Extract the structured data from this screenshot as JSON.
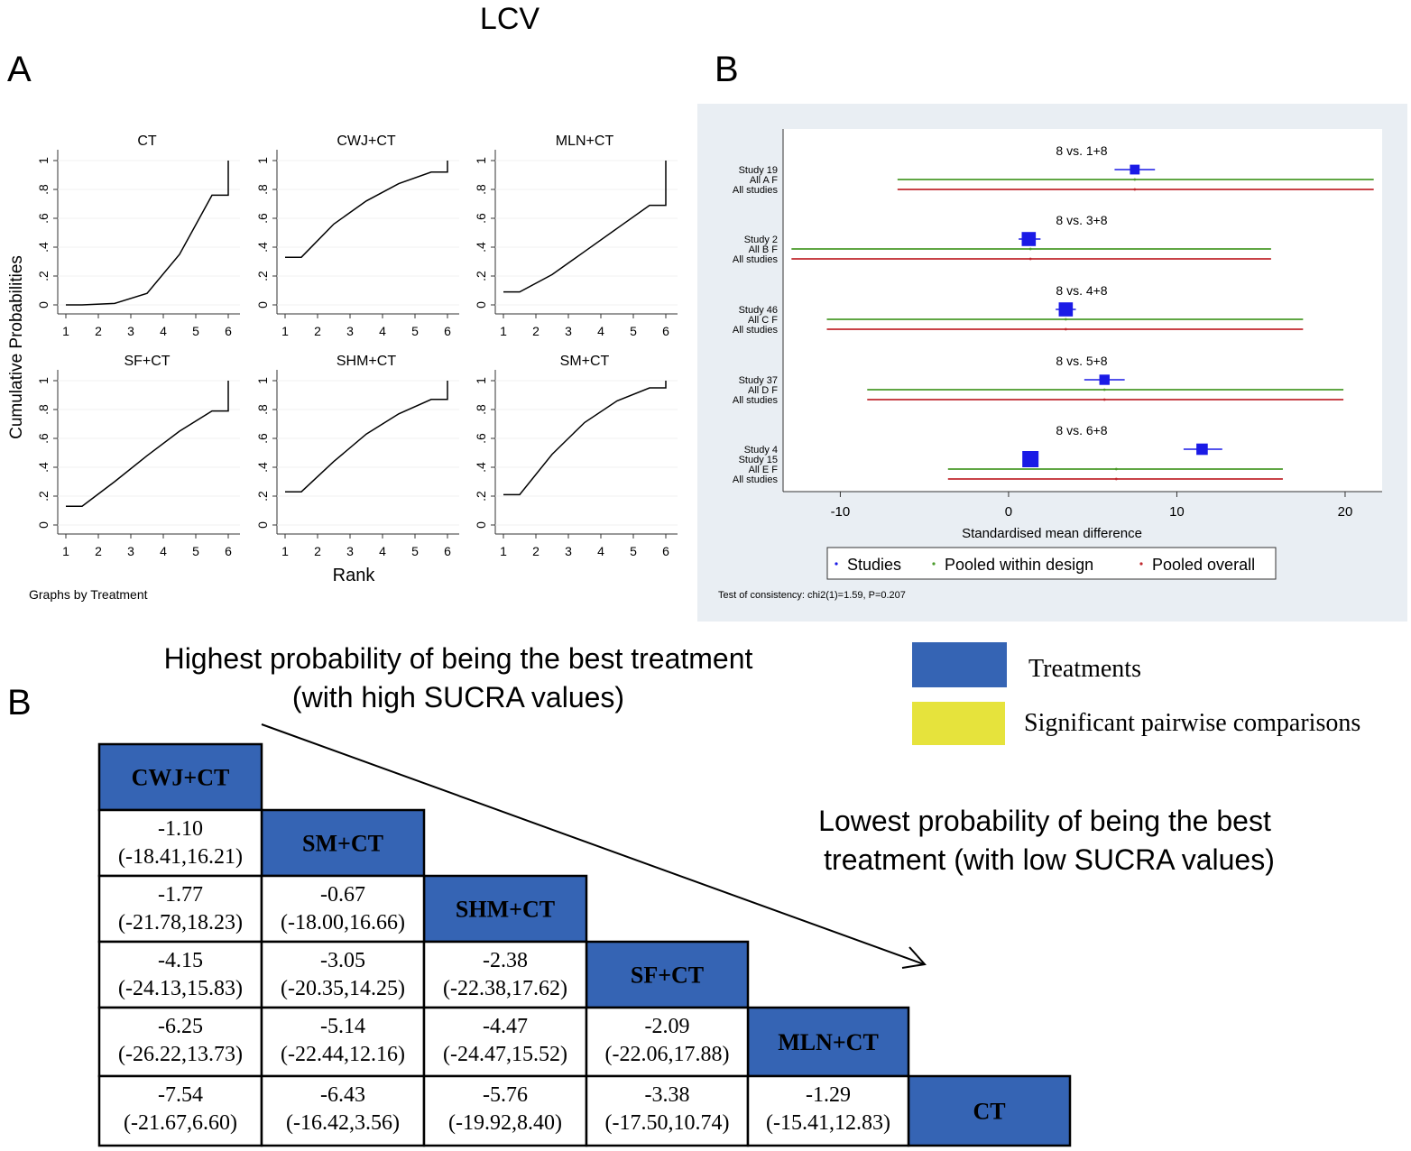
{
  "title": "LCV",
  "panel_labels": {
    "a": "A",
    "b_top": "B",
    "b_bottom": "B"
  },
  "chart_data": [
    {
      "type": "line",
      "ylabel": "Cumulative Probabilities",
      "xlabel": "Rank",
      "note": "Graphs by Treatment",
      "xlim": [
        1,
        6
      ],
      "ylim": [
        0,
        1
      ],
      "xticks": [
        "1",
        "2",
        "3",
        "4",
        "5",
        "6"
      ],
      "yticks": [
        "0",
        ".2",
        ".4",
        ".6",
        ".8",
        "1"
      ],
      "line_color": "#000000",
      "panels": [
        {
          "name": "CT",
          "x": [
            1,
            1.5,
            2.5,
            3.5,
            4.5,
            5.5,
            6,
            6
          ],
          "y": [
            0,
            0,
            0.01,
            0.08,
            0.35,
            0.76,
            0.76,
            1
          ]
        },
        {
          "name": "CWJ+CT",
          "x": [
            1,
            1.5,
            2.5,
            3.5,
            4.5,
            5.5,
            6,
            6
          ],
          "y": [
            0.33,
            0.33,
            0.56,
            0.72,
            0.84,
            0.92,
            0.92,
            1
          ]
        },
        {
          "name": "MLN+CT",
          "x": [
            1,
            1.5,
            2.5,
            3.5,
            4.5,
            5.5,
            6,
            6
          ],
          "y": [
            0.09,
            0.09,
            0.21,
            0.37,
            0.53,
            0.69,
            0.69,
            1
          ]
        },
        {
          "name": "SF+CT",
          "x": [
            1,
            1.5,
            2.5,
            3.5,
            4.5,
            5.5,
            6,
            6
          ],
          "y": [
            0.13,
            0.13,
            0.3,
            0.48,
            0.65,
            0.79,
            0.79,
            1
          ]
        },
        {
          "name": "SHM+CT",
          "x": [
            1,
            1.5,
            2.5,
            3.5,
            4.5,
            5.5,
            6,
            6
          ],
          "y": [
            0.23,
            0.23,
            0.44,
            0.63,
            0.77,
            0.87,
            0.87,
            1
          ]
        },
        {
          "name": "SM+CT",
          "x": [
            1,
            1.5,
            2.5,
            3.5,
            4.5,
            5.5,
            6,
            6
          ],
          "y": [
            0.21,
            0.21,
            0.49,
            0.71,
            0.86,
            0.95,
            0.95,
            1
          ]
        }
      ]
    },
    {
      "type": "forest",
      "xlabel": "Standardised mean difference",
      "xlim": [
        -13.4,
        22.2
      ],
      "xticks": [
        -10,
        0,
        10,
        20
      ],
      "footnote": "Test of consistency: chi2(1)=1.59, P=0.207",
      "legend": [
        {
          "label": "Studies",
          "color": "#1a1ae6"
        },
        {
          "label": "Pooled within design",
          "color": "#4a9a2a"
        },
        {
          "label": "Pooled overall",
          "color": "#c0282e"
        }
      ],
      "legend_placement": "bottom",
      "groups": [
        {
          "title": "8 vs. 1+8",
          "rows": [
            {
              "label": "Study 19",
              "kind": "study",
              "est": 7.5,
              "lo": 6.3,
              "hi": 8.7,
              "weight": 0.4
            },
            {
              "label": "All A F",
              "kind": "design",
              "est": 7.5,
              "lo": -6.6,
              "hi": 21.7
            },
            {
              "label": "All studies",
              "kind": "overall",
              "est": 7.5,
              "lo": -6.6,
              "hi": 21.7
            }
          ]
        },
        {
          "title": "8 vs. 3+8",
          "rows": [
            {
              "label": "Study 2",
              "kind": "study",
              "est": 1.2,
              "lo": 0.6,
              "hi": 1.9,
              "weight": 0.8
            },
            {
              "label": "All B F",
              "kind": "design",
              "est": 1.3,
              "lo": -12.9,
              "hi": 15.6
            },
            {
              "label": "All studies",
              "kind": "overall",
              "est": 1.3,
              "lo": -12.9,
              "hi": 15.6
            }
          ]
        },
        {
          "title": "8 vs. 4+8",
          "rows": [
            {
              "label": "Study 46",
              "kind": "study",
              "est": 3.4,
              "lo": 2.8,
              "hi": 4.0,
              "weight": 0.8
            },
            {
              "label": "All C F",
              "kind": "design",
              "est": 3.4,
              "lo": -10.8,
              "hi": 17.5
            },
            {
              "label": "All studies",
              "kind": "overall",
              "est": 3.4,
              "lo": -10.8,
              "hi": 17.5
            }
          ]
        },
        {
          "title": "8 vs. 5+8",
          "rows": [
            {
              "label": "Study 37",
              "kind": "study",
              "est": 5.7,
              "lo": 4.5,
              "hi": 6.9,
              "weight": 0.45
            },
            {
              "label": "All D F",
              "kind": "design",
              "est": 5.7,
              "lo": -8.4,
              "hi": 19.9
            },
            {
              "label": "All studies",
              "kind": "overall",
              "est": 5.7,
              "lo": -8.4,
              "hi": 19.9
            }
          ]
        },
        {
          "title": "8 vs. 6+8",
          "rows": [
            {
              "label": "Study 4",
              "kind": "study",
              "est": 11.5,
              "lo": 10.4,
              "hi": 12.7,
              "weight": 0.55
            },
            {
              "label": "Study 15",
              "kind": "study",
              "est": 1.3,
              "lo": 1.3,
              "hi": 1.3,
              "weight": 1.0
            },
            {
              "label": "All E F",
              "kind": "design",
              "est": 6.4,
              "lo": -3.6,
              "hi": 16.3
            },
            {
              "label": "All studies",
              "kind": "overall",
              "est": 6.4,
              "lo": -3.6,
              "hi": 16.3
            }
          ]
        }
      ]
    },
    {
      "type": "table",
      "treatments": [
        "CWJ+CT",
        "SM+CT",
        "SHM+CT",
        "SF+CT",
        "MLN+CT",
        "CT"
      ],
      "cells": [
        [],
        [
          [
            "-1.10",
            "(-18.41,16.21)"
          ]
        ],
        [
          [
            "-1.77",
            "(-21.78,18.23)"
          ],
          [
            "-0.67",
            "(-18.00,16.66)"
          ]
        ],
        [
          [
            "-4.15",
            "(-24.13,15.83)"
          ],
          [
            "-3.05",
            "(-20.35,14.25)"
          ],
          [
            "-2.38",
            "(-22.38,17.62)"
          ]
        ],
        [
          [
            "-6.25",
            "(-26.22,13.73)"
          ],
          [
            "-5.14",
            "(-22.44,12.16)"
          ],
          [
            "-4.47",
            "(-24.47,15.52)"
          ],
          [
            "-2.09",
            "(-22.06,17.88)"
          ]
        ],
        [
          [
            "-7.54",
            "(-21.67,6.60)"
          ],
          [
            "-6.43",
            "(-16.42,3.56)"
          ],
          [
            "-5.76",
            "(-19.92,8.40)"
          ],
          [
            "-3.38",
            "(-17.50,10.74)"
          ],
          [
            "-1.29",
            "(-15.41,12.83)"
          ]
        ]
      ],
      "treatment_color": "#3564b4",
      "significant_color": "#e6e33c"
    }
  ],
  "annotations": {
    "best_line1": "Highest probability of being the best treatment",
    "best_line2": "(with high SUCRA values)",
    "worst_line1": "Lowest probability of being the best",
    "worst_line2": "treatment (with low SUCRA values)"
  },
  "legend_boxes": [
    {
      "label": "Treatments",
      "color": "#3564b4"
    },
    {
      "label": "Significant pairwise comparisons",
      "color": "#e6e33c"
    }
  ]
}
